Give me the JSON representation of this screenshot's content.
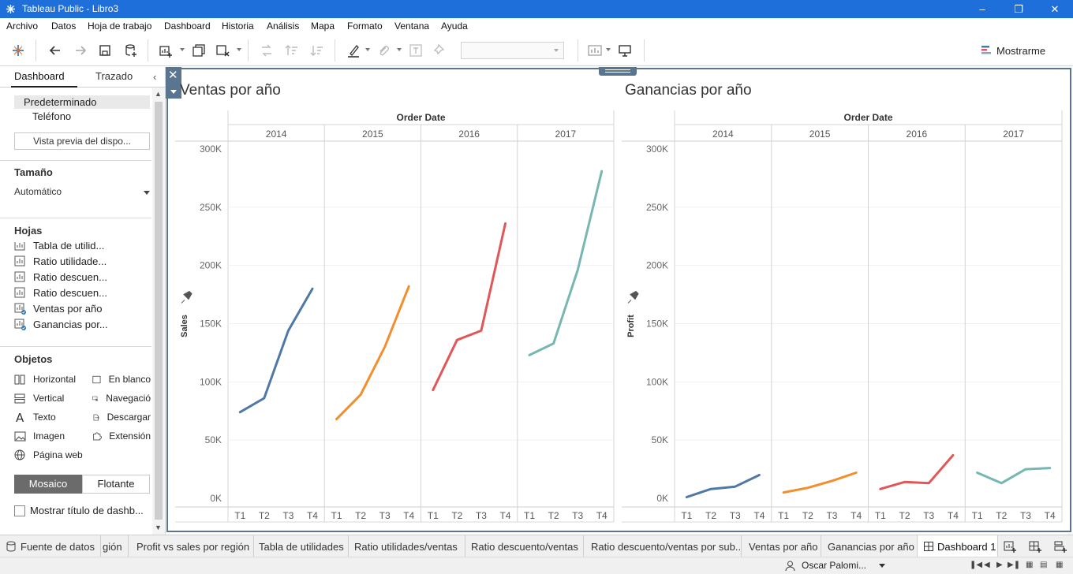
{
  "window": {
    "title": "Tableau Public - Libro3"
  },
  "menu": [
    "Archivo",
    "Datos",
    "Hoja de trabajo",
    "Dashboard",
    "Historia",
    "Análisis",
    "Mapa",
    "Formato",
    "Ventana",
    "Ayuda"
  ],
  "toolbar": {
    "show_me_label": "Mostrarme"
  },
  "left_panel": {
    "tabs": {
      "dashboard": "Dashboard",
      "layout": "Trazado"
    },
    "devices": {
      "default": "Predeterminado",
      "phone": "Teléfono"
    },
    "preview_button": "Vista previa del dispo...",
    "size": {
      "title": "Tamaño",
      "value": "Automático"
    },
    "sheets": {
      "title": "Hojas",
      "items": [
        {
          "label": "Tabla de utilid...",
          "used": false
        },
        {
          "label": "Ratio utilidade...",
          "used": false
        },
        {
          "label": "Ratio descuen...",
          "used": false
        },
        {
          "label": "Ratio descuen...",
          "used": false
        },
        {
          "label": "Ventas por año",
          "used": true
        },
        {
          "label": "Ganancias por...",
          "used": true
        }
      ]
    },
    "objects": {
      "title": "Objetos",
      "items": [
        "Horizontal",
        "En blanco",
        "Vertical",
        "Navegació",
        "Texto",
        "Descargar",
        "Imagen",
        "Extensión",
        "Página web"
      ]
    },
    "mode": {
      "tiled": "Mosaico",
      "floating": "Flotante"
    },
    "show_title": "Mostrar título de dashb..."
  },
  "charts": [
    {
      "title": "Ventas por año",
      "column_header": "Order Date",
      "y_label": "Sales",
      "y_ticks": [
        "300K",
        "250K",
        "200K",
        "150K",
        "100K",
        "50K",
        "0K"
      ]
    },
    {
      "title": "Ganancias por año",
      "column_header": "Order Date",
      "y_label": "Profit",
      "y_ticks": [
        "300K",
        "250K",
        "200K",
        "150K",
        "100K",
        "50K",
        "0K"
      ]
    }
  ],
  "chart_data": [
    {
      "type": "line",
      "title": "Ventas por año",
      "xlabel": "Order Date",
      "ylabel": "Sales",
      "ylim": [
        0,
        300000
      ],
      "years": [
        "2014",
        "2015",
        "2016",
        "2017"
      ],
      "quarters": [
        "T1",
        "T2",
        "T3",
        "T4"
      ],
      "series": [
        {
          "year": "2014",
          "color": "#4e79a7",
          "values": [
            74000,
            86000,
            144000,
            180000
          ]
        },
        {
          "year": "2015",
          "color": "#f28e2b",
          "values": [
            68000,
            89000,
            130000,
            182000
          ]
        },
        {
          "year": "2016",
          "color": "#e15759",
          "values": [
            93000,
            136000,
            144000,
            236000
          ]
        },
        {
          "year": "2017",
          "color": "#76b7b2",
          "values": [
            123000,
            133000,
            196000,
            281000
          ]
        }
      ]
    },
    {
      "type": "line",
      "title": "Ganancias por año",
      "xlabel": "Order Date",
      "ylabel": "Profit",
      "ylim": [
        0,
        300000
      ],
      "years": [
        "2014",
        "2015",
        "2016",
        "2017"
      ],
      "quarters": [
        "T1",
        "T2",
        "T3",
        "T4"
      ],
      "series": [
        {
          "year": "2014",
          "color": "#4e79a7",
          "values": [
            1000,
            8000,
            10000,
            20000
          ]
        },
        {
          "year": "2015",
          "color": "#f28e2b",
          "values": [
            5000,
            9000,
            15000,
            22000
          ]
        },
        {
          "year": "2016",
          "color": "#e15759",
          "values": [
            8000,
            14000,
            13000,
            37000
          ]
        },
        {
          "year": "2017",
          "color": "#76b7b2",
          "values": [
            22000,
            13000,
            25000,
            26000
          ]
        }
      ]
    }
  ],
  "sheet_tabs": {
    "data_source": "Fuente de datos",
    "items": [
      {
        "label": "gión",
        "active": false
      },
      {
        "label": "Profit vs sales por región",
        "active": false
      },
      {
        "label": "Tabla de utilidades",
        "active": false
      },
      {
        "label": "Ratio utilidades/ventas",
        "active": false
      },
      {
        "label": "Ratio descuento/ventas",
        "active": false
      },
      {
        "label": "Ratio descuento/ventas por sub...",
        "active": false
      },
      {
        "label": "Ventas por año",
        "active": false
      },
      {
        "label": "Ganancias por año",
        "active": false
      },
      {
        "label": "Dashboard 1",
        "active": true
      }
    ]
  },
  "status": {
    "user": "Oscar Palomi..."
  }
}
